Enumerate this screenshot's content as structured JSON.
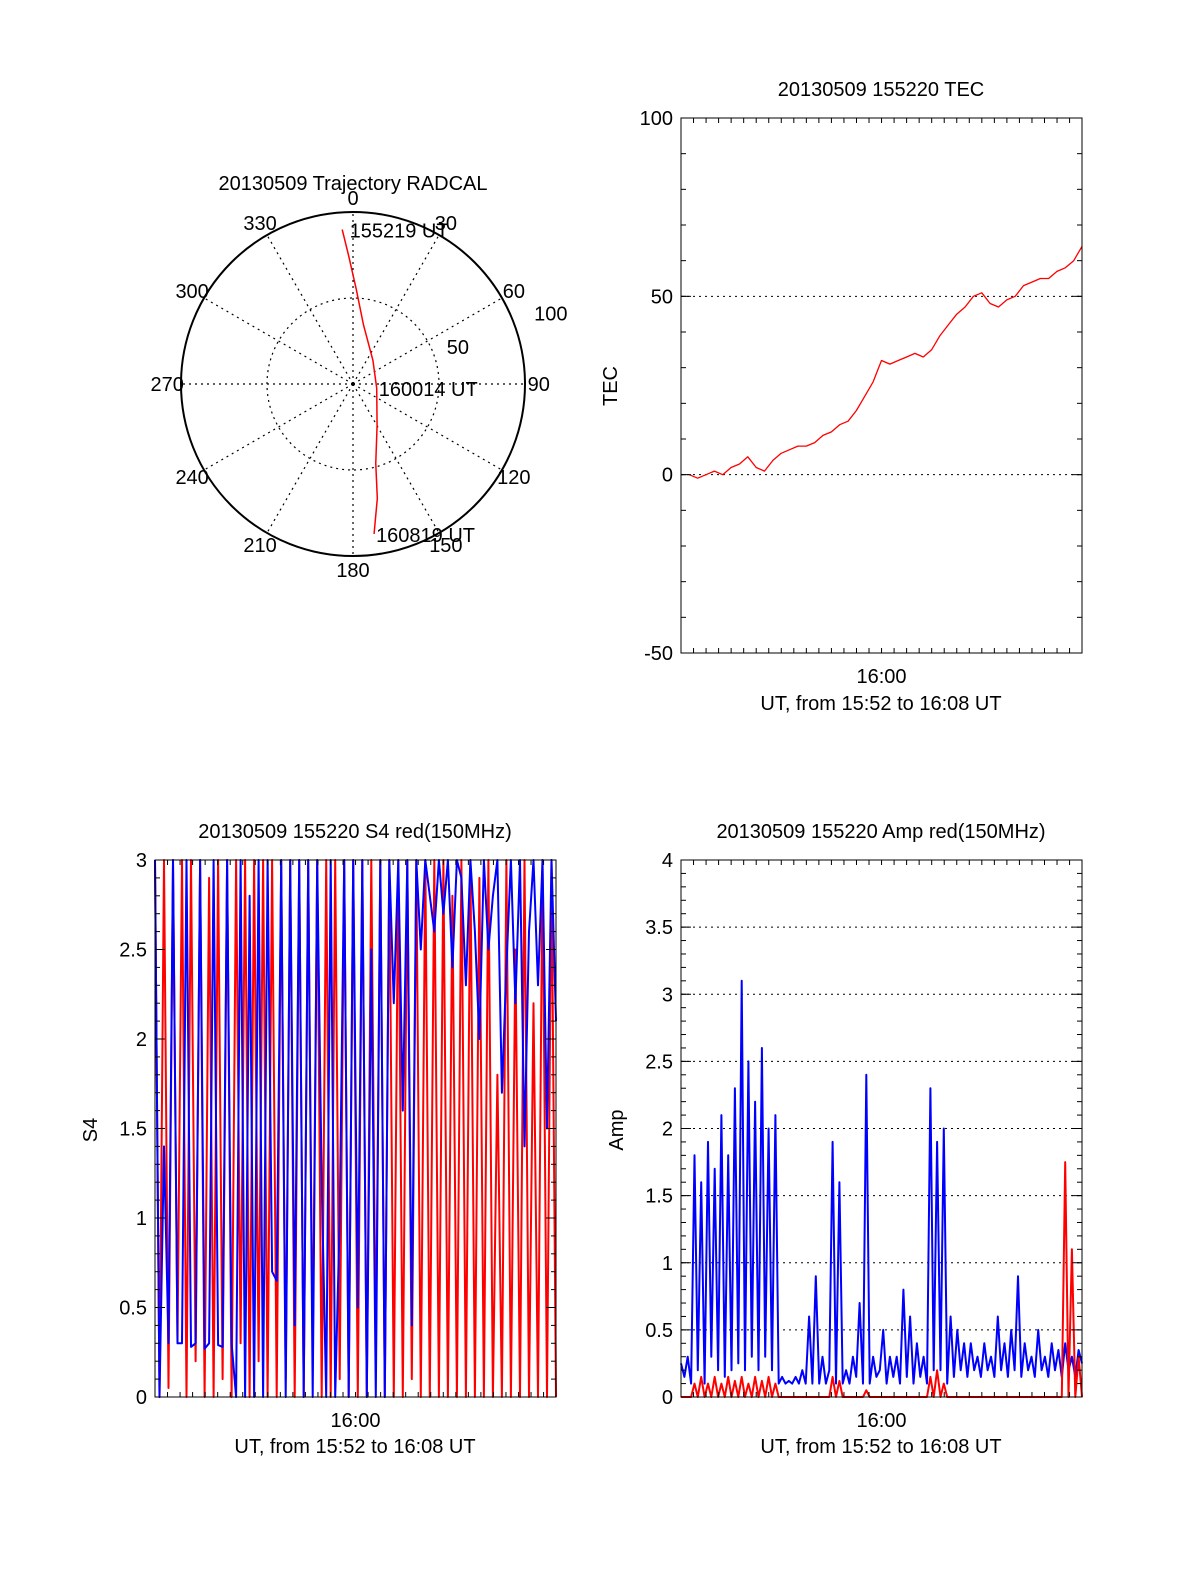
{
  "colors": {
    "red": "#ff0000",
    "blue": "#0000ff",
    "black": "#000000",
    "background": "#ffffff"
  },
  "chart_data": [
    {
      "id": "polar",
      "type": "polar",
      "title": "20130509 Trajectory RADCAL",
      "angle_labels": [
        "0",
        "30",
        "60",
        "90",
        "120",
        "150",
        "180",
        "210",
        "240",
        "270",
        "300",
        "330"
      ],
      "radius_labels": [
        "50",
        "100"
      ],
      "rlim": [
        0,
        100
      ],
      "series": [
        {
          "name": "trajectory",
          "color": "red",
          "points": [
            {
              "az": 356,
              "r": 90
            },
            {
              "az": 358,
              "r": 75
            },
            {
              "az": 2,
              "r": 55
            },
            {
              "az": 10,
              "r": 35
            },
            {
              "az": 40,
              "r": 18
            },
            {
              "az": 100,
              "r": 14
            },
            {
              "az": 150,
              "r": 28
            },
            {
              "az": 164,
              "r": 48
            },
            {
              "az": 168,
              "r": 68
            },
            {
              "az": 172,
              "r": 88
            }
          ]
        }
      ],
      "annotations": [
        {
          "text": "155219 UT",
          "az": 358,
          "r": 90
        },
        {
          "text": "160014 UT",
          "az": 100,
          "r": 14
        },
        {
          "text": "160819 UT",
          "az": 172,
          "r": 88
        }
      ]
    },
    {
      "id": "tec",
      "type": "line",
      "title": "20130509 155220 TEC",
      "xlabel": "UT, from 15:52 to 16:08 UT",
      "ylabel": "TEC",
      "xlim": [
        15.8667,
        16.1333
      ],
      "ylim": [
        -50,
        100
      ],
      "yticks": [
        "-50",
        "0",
        "50",
        "100"
      ],
      "xticks": [
        {
          "label": "16:00",
          "value": 16.0
        }
      ],
      "grid": true,
      "series": [
        {
          "name": "TEC",
          "color": "red",
          "x": [
            15.8722,
            15.8778,
            15.8833,
            15.8889,
            15.8944,
            15.9,
            15.9056,
            15.9111,
            15.9167,
            15.9222,
            15.9278,
            15.9333,
            15.9389,
            15.9444,
            15.95,
            15.9556,
            15.9611,
            15.9667,
            15.9722,
            15.9778,
            15.9833,
            15.9889,
            15.9944,
            16.0,
            16.0056,
            16.0111,
            16.0167,
            16.0222,
            16.0278,
            16.0333,
            16.0389,
            16.0444,
            16.05,
            16.0556,
            16.0611,
            16.0667,
            16.0722,
            16.0778,
            16.0833,
            16.0889,
            16.0944,
            16.1,
            16.1056,
            16.1111,
            16.1167,
            16.1222,
            16.1278,
            16.1333
          ],
          "values": [
            0,
            -1,
            0,
            1,
            0,
            2,
            3,
            5,
            2,
            1,
            4,
            6,
            7,
            8,
            8,
            9,
            11,
            12,
            14,
            15,
            18,
            22,
            26,
            32,
            31,
            32,
            33,
            34,
            33,
            35,
            39,
            42,
            45,
            47,
            50,
            51,
            48,
            47,
            49,
            50,
            53,
            54,
            55,
            55,
            57,
            58,
            60,
            64
          ]
        }
      ]
    },
    {
      "id": "s4",
      "type": "line",
      "title": "20130509 155220 S4 red(150MHz)",
      "xlabel": "UT, from 15:52 to 16:08 UT",
      "ylabel": "S4",
      "xlim": [
        15.8667,
        16.1333
      ],
      "ylim": [
        0,
        3
      ],
      "yticks": [
        "0",
        "0.5",
        "1",
        "1.5",
        "2",
        "2.5",
        "3"
      ],
      "xticks": [
        {
          "label": "16:00",
          "value": 16.0
        }
      ],
      "grid": false,
      "series": [
        {
          "name": "red 150MHz",
          "color": "red",
          "x_start": 15.8667,
          "x_end": 16.1333,
          "values": [
            3.0,
            0.0,
            3.0,
            0.05,
            3.0,
            0.3,
            3.0,
            0.0,
            3.0,
            0.2,
            3.0,
            0.0,
            2.9,
            0.0,
            3.0,
            0.1,
            3.0,
            0.0,
            3.0,
            0.3,
            3.0,
            0.0,
            3.0,
            0.2,
            3.0,
            0.0,
            3.0,
            0.0,
            3.0,
            0.1,
            3.0,
            0.0,
            3.0,
            0.0,
            3.0,
            0.2,
            3.0,
            0.0,
            3.0,
            0.0,
            3.0,
            0.1,
            3.0,
            0.0,
            3.0,
            0.0,
            3.0,
            0.0,
            3.0,
            0.2,
            3.0,
            0.0,
            3.0,
            0.0,
            3.0,
            0.0,
            3.0,
            0.1,
            3.0,
            0.0,
            3.0,
            0.0,
            3.0,
            0.0,
            3.0,
            0.0,
            2.8,
            0.0,
            3.0,
            0.0,
            3.0,
            0.0,
            2.9,
            0.0,
            3.0,
            0.0,
            1.8,
            0.0,
            3.0,
            0.0,
            2.5,
            0.0,
            3.0,
            0.0,
            2.2,
            0.0,
            3.0,
            0.0,
            3.0,
            0.0
          ]
        },
        {
          "name": "blue",
          "color": "blue",
          "x_start": 15.8667,
          "x_end": 16.1333,
          "values": [
            3.0,
            0.0,
            1.4,
            0.3,
            3.0,
            0.3,
            0.3,
            3.0,
            0.28,
            0.3,
            3.0,
            0.27,
            0.3,
            3.0,
            0.29,
            0.28,
            3.0,
            0.3,
            0.0,
            3.0,
            0.0,
            2.8,
            0.0,
            3.0,
            0.0,
            3.0,
            0.7,
            0.65,
            3.0,
            0.0,
            3.0,
            0.4,
            3.0,
            0.0,
            3.0,
            0.0,
            3.0,
            1.2,
            0.0,
            3.0,
            0.0,
            1.0,
            3.0,
            0.0,
            3.0,
            0.5,
            3.0,
            0.0,
            2.5,
            0.0,
            3.0,
            0.0,
            3.0,
            2.2,
            3.0,
            1.6,
            3.0,
            0.4,
            3.0,
            2.5,
            3.0,
            2.8,
            2.6,
            3.0,
            2.7,
            3.0,
            2.4,
            3.0,
            2.9,
            2.3,
            3.0,
            2.6,
            2.0,
            3.0,
            2.5,
            2.8,
            3.0,
            1.7,
            2.4,
            3.0,
            2.2,
            3.0,
            1.4,
            2.6,
            3.0,
            2.3,
            3.0,
            1.5,
            3.0,
            2.1
          ]
        }
      ]
    },
    {
      "id": "amp",
      "type": "line",
      "title": "20130509 155220 Amp red(150MHz)",
      "xlabel": "UT, from 15:52 to 16:08 UT",
      "ylabel": "Amp",
      "xlim": [
        15.8667,
        16.1333
      ],
      "ylim": [
        0,
        4
      ],
      "yticks": [
        "0",
        "0.5",
        "1",
        "1.5",
        "2",
        "2.5",
        "3",
        "3.5",
        "4"
      ],
      "xticks": [
        {
          "label": "16:00",
          "value": 16.0
        }
      ],
      "grid": true,
      "series": [
        {
          "name": "blue",
          "color": "blue",
          "x_start": 15.8667,
          "x_end": 16.1333,
          "values": [
            0.25,
            0.15,
            0.3,
            0.1,
            1.8,
            0.2,
            1.6,
            0.1,
            1.9,
            0.3,
            1.7,
            0.2,
            2.1,
            0.15,
            1.8,
            0.2,
            2.3,
            0.25,
            3.1,
            0.2,
            2.5,
            0.3,
            2.2,
            0.2,
            2.6,
            0.3,
            2.0,
            0.2,
            2.1,
            0.1,
            0.15,
            0.1,
            0.12,
            0.1,
            0.15,
            0.1,
            0.2,
            0.1,
            0.6,
            0.1,
            0.9,
            0.1,
            0.3,
            0.1,
            0.2,
            1.9,
            0.1,
            1.6,
            0.1,
            0.2,
            0.1,
            0.3,
            0.15,
            0.7,
            0.1,
            2.4,
            0.1,
            0.3,
            0.15,
            0.2,
            0.5,
            0.1,
            0.3,
            0.15,
            0.3,
            0.1,
            0.8,
            0.15,
            0.6,
            0.1,
            0.4,
            0.15,
            0.3,
            0.1,
            2.3,
            0.2,
            1.9,
            0.2,
            2.0,
            0.1,
            0.6,
            0.15,
            0.5,
            0.2,
            0.4,
            0.15,
            0.4,
            0.2,
            0.3,
            0.15,
            0.4,
            0.2,
            0.3,
            0.15,
            0.6,
            0.2,
            0.4,
            0.15,
            0.5,
            0.2,
            0.9,
            0.15,
            0.4,
            0.2,
            0.3,
            0.15,
            0.5,
            0.2,
            0.3,
            0.15,
            0.4,
            0.2,
            0.35,
            0.15,
            0.4,
            0.2,
            0.3,
            0.15,
            0.35,
            0.25
          ]
        },
        {
          "name": "red 150MHz",
          "color": "red",
          "x_start": 15.8667,
          "x_end": 16.1333,
          "values": [
            0.0,
            0.0,
            0.0,
            0.0,
            0.1,
            0.0,
            0.15,
            0.0,
            0.1,
            0.0,
            0.15,
            0.0,
            0.1,
            0.0,
            0.15,
            0.0,
            0.12,
            0.0,
            0.15,
            0.0,
            0.1,
            0.0,
            0.15,
            0.0,
            0.12,
            0.0,
            0.15,
            0.0,
            0.1,
            0.0,
            0.0,
            0.0,
            0.0,
            0.0,
            0.0,
            0.0,
            0.0,
            0.0,
            0.0,
            0.0,
            0.0,
            0.0,
            0.0,
            0.0,
            0.0,
            0.15,
            0.0,
            0.12,
            0.0,
            0.0,
            0.0,
            0.0,
            0.0,
            0.0,
            0.0,
            0.05,
            0.0,
            0.0,
            0.0,
            0.0,
            0.0,
            0.0,
            0.0,
            0.0,
            0.0,
            0.0,
            0.0,
            0.0,
            0.0,
            0.0,
            0.0,
            0.0,
            0.0,
            0.0,
            0.15,
            0.0,
            0.2,
            0.0,
            0.1,
            0.0,
            0.0,
            0.0,
            0.0,
            0.0,
            0.0,
            0.0,
            0.0,
            0.0,
            0.0,
            0.0,
            0.0,
            0.0,
            0.0,
            0.0,
            0.0,
            0.0,
            0.0,
            0.0,
            0.0,
            0.0,
            0.0,
            0.0,
            0.0,
            0.0,
            0.0,
            0.0,
            0.0,
            0.0,
            0.0,
            0.0,
            0.0,
            0.0,
            0.0,
            0.0,
            1.75,
            0.0,
            1.1,
            0.0,
            0.3,
            0.0
          ]
        }
      ]
    }
  ]
}
